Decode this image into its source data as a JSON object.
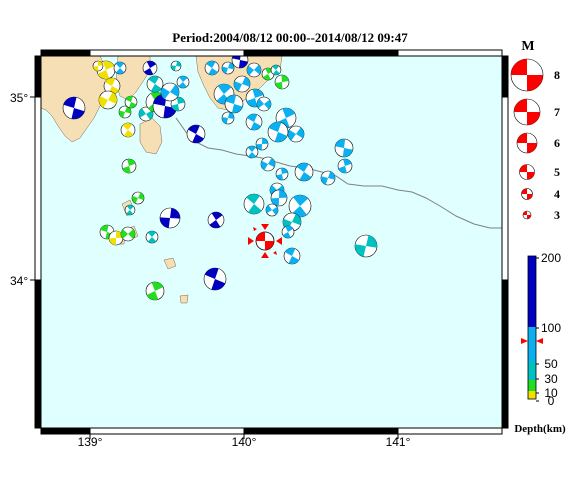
{
  "title": "Period:2004/08/12 00:00--2014/08/12 09:47",
  "lon_ticks": [
    "139°",
    "140°",
    "141°"
  ],
  "lat_ticks": [
    "35°",
    "34°"
  ],
  "magnitude_legend": {
    "heading": "M",
    "levels": [
      "8",
      "7",
      "6",
      "5",
      "4",
      "3"
    ],
    "color": "#ff0000"
  },
  "depth_scale": {
    "ticks": [
      "200",
      "100",
      "50",
      "30",
      "10",
      "0"
    ],
    "label": "Depth(km)",
    "colors": {
      "0-10": "#f0e000",
      "10-30": "#22dd22",
      "30-50": "#00c0c0",
      "50-100": "#0ab0f0",
      "100-200": "#0000c0"
    }
  },
  "colors": {
    "sea": "#e0ffff",
    "land": "#f6dfb4",
    "highlight": "#ff0000",
    "trench": "#808080"
  }
}
